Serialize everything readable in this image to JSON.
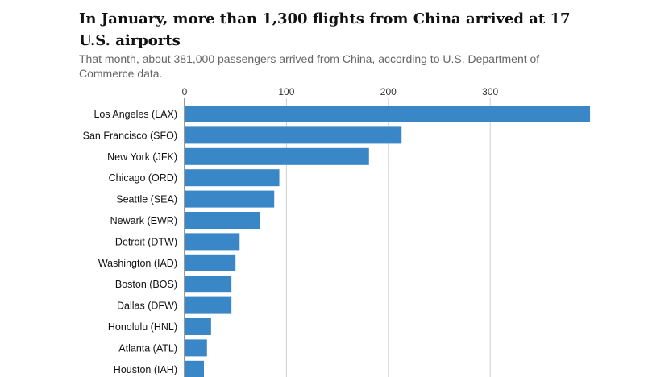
{
  "chart_data": {
    "type": "bar",
    "orientation": "horizontal",
    "title": "In January, more than 1,300 flights from China arrived at 17 U.S. airports",
    "subtitle": "That month, about 381,000 passengers arrived from China, according to U.S. Department of Commerce data.",
    "xlim": [
      0,
      400
    ],
    "ticks": [
      0,
      100,
      200,
      300
    ],
    "grid": true,
    "bar_color": "#3a87c8",
    "grid_color": "#d0d0d0",
    "categories": [
      "Los Angeles (LAX)",
      "San Francisco (SFO)",
      "New York (JFK)",
      "Chicago (ORD)",
      "Seattle (SEA)",
      "Newark (EWR)",
      "Detroit (DTW)",
      "Washington (IAD)",
      "Boston (BOS)",
      "Dallas (DFW)",
      "Honolulu (HNL)",
      "Atlanta (ATL)",
      "Houston (IAH)"
    ],
    "values": [
      398,
      213,
      181,
      93,
      88,
      74,
      54,
      50,
      46,
      46,
      26,
      22,
      19
    ]
  }
}
